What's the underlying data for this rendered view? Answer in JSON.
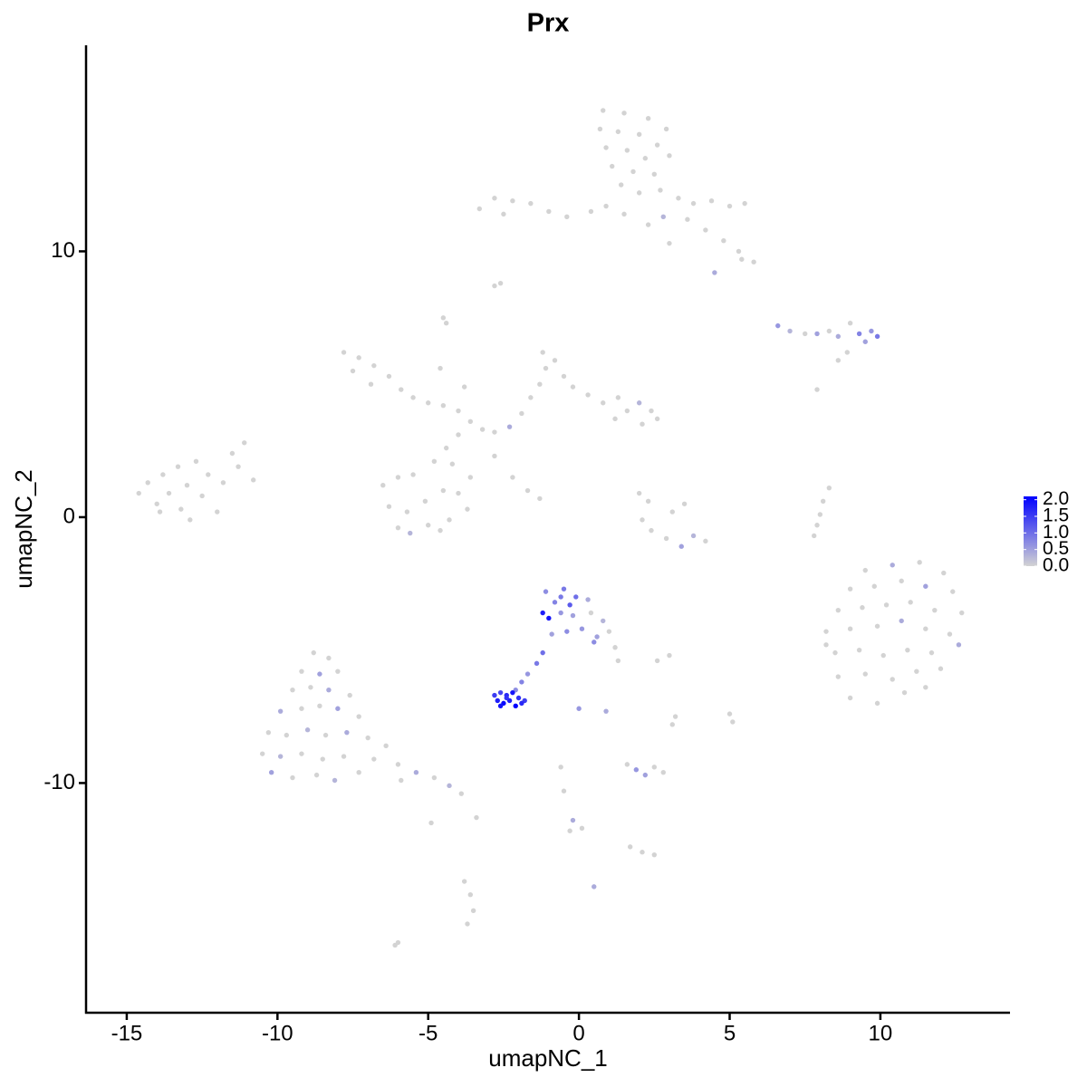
{
  "chart_data": {
    "type": "scatter",
    "title": "Prx",
    "x_label": "umapNC_1",
    "y_label": "umapNC_2",
    "xlim": [
      -16.35,
      14.3
    ],
    "ylim": [
      -18.64,
      17.75
    ],
    "xticks": [
      -15,
      -10,
      -5,
      0,
      5,
      10
    ],
    "yticks": [
      -10,
      0,
      10
    ],
    "color_low": "#d3d3d3",
    "color_high": "#0000ff",
    "color_lim": [
      0,
      2.1
    ],
    "color_ticks": [
      {
        "value": 0,
        "label": "0.0"
      },
      {
        "value": 0.5,
        "label": "0.5"
      },
      {
        "value": 1,
        "label": "1.0"
      },
      {
        "value": 1.5,
        "label": "1.5"
      },
      {
        "value": 2,
        "label": "2.0"
      }
    ],
    "x": [
      0.8,
      1.5,
      2.3,
      2.9,
      0.7,
      1.3,
      2.0,
      2.6,
      0.9,
      1.6,
      2.2,
      3.0,
      1.1,
      1.8,
      2.5,
      1.4,
      2.0,
      2.7,
      3.3,
      3.8,
      4.4,
      5.0,
      5.5,
      3.6,
      4.2,
      4.8,
      5.3,
      5.8,
      5.4,
      4.5,
      2.8,
      1.5,
      0.9,
      0.4,
      -0.4,
      -1.0,
      -1.6,
      -2.2,
      -2.8,
      -3.3,
      -2.5,
      2.3,
      3.0,
      -2.8,
      -2.6,
      -4.5,
      -4.4,
      6.6,
      7.0,
      7.5,
      7.9,
      8.3,
      8.6,
      9.0,
      9.3,
      9.7,
      9.9,
      9.5,
      8.9,
      8.6,
      7.9,
      -7.8,
      -7.3,
      -6.8,
      -7.5,
      -6.3,
      -6.9,
      -5.9,
      -5.5,
      -5.0,
      -4.5,
      -4.0,
      -3.6,
      -3.2,
      -2.8,
      -2.3,
      -1.9,
      -1.6,
      -1.3,
      -1.1,
      -1.2,
      -0.8,
      -0.5,
      -0.2,
      0.3,
      0.8,
      1.3,
      1.6,
      2.0,
      2.4,
      2.6,
      2.1,
      1.2,
      -4.6,
      -3.8,
      -4.0,
      -4.4,
      -4.8,
      -4.2,
      -3.6,
      -2.8,
      -2.2,
      -1.7,
      -1.3,
      -6.5,
      -6.0,
      -5.5,
      -6.3,
      -5.7,
      -5.1,
      -4.5,
      -4.0,
      -3.7,
      -4.3,
      -5.0,
      -6.0,
      -5.6,
      -4.6,
      -14.6,
      -14.3,
      -14.0,
      -13.8,
      -13.6,
      -13.3,
      -13.2,
      -13.0,
      -12.7,
      -12.5,
      -12.3,
      -12.0,
      -11.8,
      -11.5,
      -11.3,
      -11.1,
      -10.8,
      -12.9,
      -13.9,
      2.0,
      2.3,
      2.1,
      2.4,
      2.9,
      3.4,
      3.8,
      4.2,
      3.1,
      3.5,
      8.3,
      8.1,
      8.0,
      7.9,
      7.8,
      9.5,
      10.4,
      11.3,
      12.1,
      9.0,
      9.8,
      10.7,
      11.5,
      12.4,
      8.6,
      9.4,
      10.2,
      11.0,
      11.8,
      12.7,
      8.2,
      9.0,
      9.9,
      10.7,
      11.5,
      12.3,
      8.5,
      9.3,
      10.1,
      10.9,
      11.7,
      12.6,
      8.6,
      9.5,
      10.4,
      11.2,
      12.0,
      9.0,
      9.9,
      10.8,
      11.5,
      8.2,
      -1.1,
      -0.5,
      -0.1,
      0.3,
      -0.8,
      -1.2,
      -1.0,
      -0.6,
      -0.2,
      0.4,
      0.8,
      1.0,
      0.6,
      0.1,
      -0.4,
      -0.9,
      1.2,
      1.3,
      -0.6,
      0.5,
      -0.3,
      -1.2,
      -1.4,
      -1.7,
      -1.9,
      -2.1,
      -2.8,
      -2.6,
      -2.4,
      -2.2,
      -2.0,
      -1.8,
      -2.7,
      -2.5,
      -2.3,
      -2.1,
      -1.9,
      -2.6,
      -2.4,
      0.0,
      -8.8,
      -8.3,
      -9.2,
      -8.6,
      -8.0,
      -9.5,
      -8.9,
      -8.3,
      -7.6,
      -9.9,
      -9.2,
      -8.6,
      -8.0,
      -7.3,
      -10.3,
      -9.7,
      -9.0,
      -8.4,
      -7.7,
      -7.0,
      -6.4,
      -10.5,
      -9.9,
      -9.2,
      -8.5,
      -7.8,
      -6.8,
      -6.0,
      -5.4,
      -4.8,
      -4.3,
      -3.9,
      -10.2,
      -9.5,
      -8.7,
      -8.1,
      -7.3,
      -5.9,
      1.6,
      1.9,
      2.2,
      2.5,
      2.8,
      1.7,
      2.1,
      2.5,
      -0.2,
      -0.3,
      0.1,
      -0.6,
      -0.5,
      -3.6,
      -3.5,
      -3.7,
      -3.8,
      -6.1,
      -6.0,
      0.5,
      3.2,
      3.1,
      5.0,
      5.1,
      3.0,
      2.6,
      -4.9,
      -3.4,
      0.9
    ],
    "values": [
      15.3,
      15.2,
      15.0,
      14.6,
      14.6,
      14.5,
      14.4,
      14.0,
      13.9,
      13.8,
      13.5,
      13.6,
      13.2,
      13.0,
      12.9,
      12.5,
      12.2,
      12.3,
      12.0,
      11.8,
      11.9,
      11.7,
      11.8,
      11.2,
      10.8,
      10.4,
      10.0,
      9.6,
      9.7,
      9.2,
      11.3,
      11.4,
      11.7,
      11.5,
      11.3,
      11.5,
      11.8,
      11.9,
      12.0,
      11.6,
      11.4,
      11.0,
      10.3,
      8.7,
      8.8,
      7.5,
      7.3,
      7.2,
      7.0,
      6.9,
      6.9,
      7.0,
      6.8,
      7.3,
      6.9,
      7.0,
      6.8,
      6.6,
      6.2,
      5.9,
      4.8,
      6.2,
      6.0,
      5.7,
      5.5,
      5.3,
      5.0,
      4.8,
      4.5,
      4.3,
      4.2,
      4.0,
      3.6,
      3.3,
      3.2,
      3.4,
      3.9,
      4.5,
      5.0,
      5.6,
      6.2,
      5.9,
      5.3,
      4.9,
      4.6,
      4.3,
      4.5,
      4.0,
      4.3,
      4.0,
      3.7,
      3.5,
      3.7,
      5.6,
      4.9,
      3.1,
      2.6,
      2.1,
      2.0,
      1.5,
      2.3,
      1.5,
      1.0,
      0.7,
      1.2,
      1.5,
      1.6,
      0.4,
      0.2,
      0.6,
      1.0,
      0.9,
      0.3,
      -0.1,
      -0.3,
      -0.4,
      -0.6,
      -0.5,
      0.9,
      1.3,
      0.5,
      1.6,
      0.9,
      1.9,
      0.3,
      1.2,
      2.1,
      0.8,
      1.6,
      0.2,
      1.3,
      2.4,
      1.9,
      2.8,
      1.4,
      -0.1,
      0.2,
      0.9,
      0.6,
      -0.1,
      -0.5,
      -0.8,
      -1.1,
      -0.7,
      -0.9,
      0.2,
      0.5,
      1.1,
      0.6,
      0.1,
      -0.3,
      -0.7,
      -2.0,
      -1.8,
      -1.7,
      -2.1,
      -2.7,
      -2.6,
      -2.4,
      -2.6,
      -2.8,
      -3.5,
      -3.4,
      -3.3,
      -3.2,
      -3.5,
      -3.6,
      -4.3,
      -4.2,
      -4.1,
      -3.9,
      -4.2,
      -4.4,
      -5.1,
      -5.0,
      -5.2,
      -5.0,
      -5.1,
      -4.8,
      -6.0,
      -5.9,
      -6.1,
      -5.8,
      -5.7,
      -6.8,
      -7.0,
      -6.6,
      -6.4,
      -4.8,
      -2.8,
      -2.7,
      -3.0,
      -3.1,
      -3.2,
      -3.6,
      -3.8,
      -3.6,
      -3.7,
      -3.6,
      -3.9,
      -4.3,
      -4.5,
      -4.2,
      -4.3,
      -4.4,
      -4.9,
      -5.4,
      -3.0,
      -4.7,
      -3.3,
      -5.1,
      -5.5,
      -5.9,
      -6.2,
      -6.5,
      -6.7,
      -6.6,
      -6.7,
      -6.6,
      -6.8,
      -6.9,
      -6.9,
      -7.0,
      -6.9,
      -7.1,
      -7.0,
      -7.1,
      -6.8,
      -7.2,
      -5.1,
      -5.3,
      -5.8,
      -5.9,
      -5.8,
      -6.5,
      -6.4,
      -6.5,
      -6.7,
      -7.3,
      -7.2,
      -7.1,
      -7.2,
      -7.5,
      -8.1,
      -8.2,
      -8.0,
      -8.2,
      -8.1,
      -8.3,
      -8.6,
      -8.9,
      -9.0,
      -8.9,
      -9.1,
      -9.0,
      -9.1,
      -9.3,
      -9.6,
      -9.8,
      -10.1,
      -10.4,
      -9.6,
      -9.8,
      -9.7,
      -9.9,
      -9.6,
      -9.9,
      -9.3,
      -9.5,
      -9.7,
      -9.4,
      -9.6,
      -12.4,
      -12.6,
      -12.7,
      -11.4,
      -11.8,
      -11.7,
      -9.4,
      -10.3,
      -14.2,
      -14.8,
      -15.3,
      -13.7,
      -16.1,
      -16.0,
      -13.9,
      -7.5,
      -7.8,
      -7.4,
      -7.7,
      -5.2,
      -5.4,
      -11.5,
      -11.3,
      -7.3
    ],
    "expression": [
      0,
      0,
      0,
      0,
      0,
      0,
      0,
      0,
      0,
      0,
      0,
      0,
      0,
      0,
      0,
      0,
      0,
      0,
      0,
      0,
      0,
      0,
      0,
      0,
      0,
      0,
      0,
      0,
      0,
      0.4,
      0.3,
      0,
      0,
      0,
      0,
      0,
      0,
      0,
      0,
      0,
      0,
      0,
      0,
      0,
      0,
      0,
      0,
      0.6,
      0.3,
      0,
      0.5,
      0,
      0.4,
      0,
      0.8,
      0.6,
      0.9,
      0.5,
      0,
      0,
      0,
      0,
      0,
      0,
      0,
      0,
      0,
      0,
      0,
      0,
      0,
      0,
      0,
      0,
      0,
      0.4,
      0,
      0,
      0,
      0,
      0,
      0,
      0,
      0,
      0,
      0,
      0,
      0,
      0.3,
      0,
      0,
      0,
      0,
      0,
      0,
      0,
      0,
      0,
      0,
      0,
      0,
      0,
      0,
      0,
      0,
      0,
      0,
      0,
      0,
      0,
      0,
      0,
      0,
      0,
      0,
      0,
      0.3,
      0,
      0,
      0,
      0,
      0,
      0,
      0,
      0,
      0,
      0,
      0,
      0,
      0,
      0,
      0,
      0,
      0,
      0,
      0,
      0,
      0,
      0,
      0,
      0,
      0,
      0.5,
      0.3,
      0,
      0,
      0,
      0,
      0,
      0,
      0,
      0,
      0,
      0.4,
      0,
      0,
      0,
      0,
      0,
      0.5,
      0,
      0,
      0,
      0,
      0,
      0,
      0,
      0,
      0,
      0,
      0.4,
      0,
      0,
      0,
      0,
      0,
      0,
      0,
      0.4,
      0,
      0,
      0,
      0,
      0,
      0,
      0,
      0,
      0,
      0,
      0.7,
      0.9,
      1.0,
      0.4,
      0.8,
      1.8,
      1.9,
      0.6,
      0.5,
      0,
      0.3,
      0,
      0.5,
      0.6,
      0.7,
      0.5,
      0,
      0,
      0.9,
      0.7,
      1.2,
      1.0,
      0.9,
      0.6,
      0.8,
      0.7,
      1.5,
      1.4,
      1.7,
      1.9,
      1.6,
      1.5,
      1.8,
      2.0,
      1.8,
      2.1,
      1.7,
      1.9,
      1.6,
      0.6,
      0,
      0,
      0,
      0.5,
      0,
      0,
      0,
      0.4,
      0,
      0.4,
      0,
      0,
      0.5,
      0,
      0,
      0,
      0.3,
      0,
      0.4,
      0,
      0,
      0,
      0.3,
      0,
      0,
      0,
      0,
      0,
      0.4,
      0,
      0.3,
      0,
      0.5,
      0,
      0,
      0.3,
      0,
      0,
      0,
      0.6,
      0.5,
      0,
      0,
      0,
      0,
      0,
      0.4,
      0,
      0,
      0,
      0,
      0,
      0,
      0,
      0,
      0,
      0,
      0.4,
      0,
      0,
      0,
      0,
      0,
      0,
      0,
      0,
      0.4
    ]
  }
}
